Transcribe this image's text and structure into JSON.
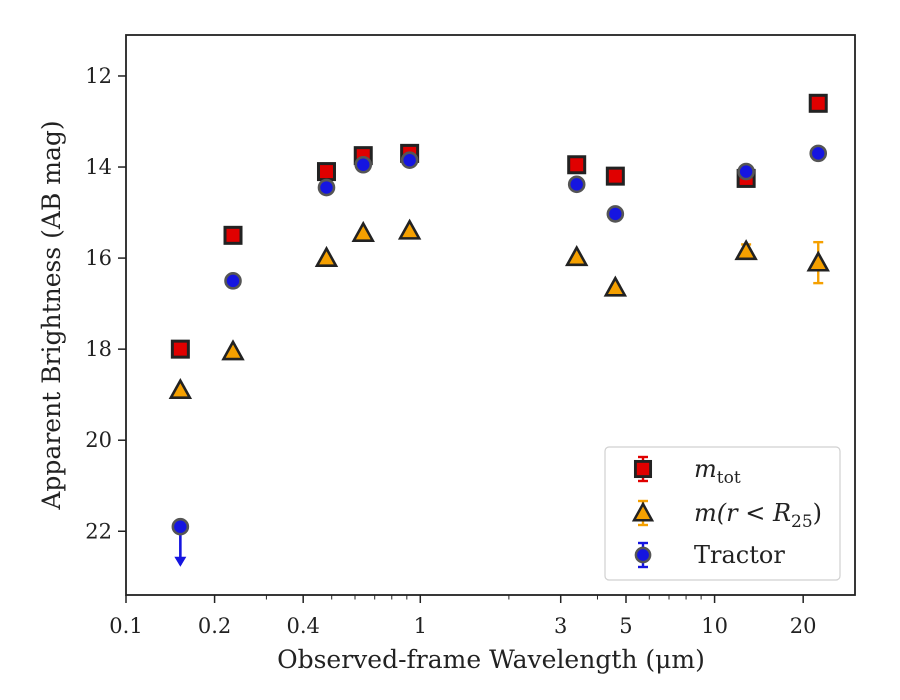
{
  "chart_data": {
    "type": "scatter",
    "xlabel": "Observed-frame Wavelength (μm)",
    "ylabel": "Apparent Brightness (AB mag)",
    "x_scale": "log",
    "xlim": [
      0.1,
      30
    ],
    "ylim": [
      23.4,
      11.1
    ],
    "y_inverted": true,
    "x_ticks": [
      0.1,
      0.2,
      0.4,
      1,
      3,
      5,
      10,
      20
    ],
    "x_tick_labels": [
      "0.1",
      "0.2",
      "0.4",
      "1",
      "3",
      "5",
      "10",
      "20"
    ],
    "y_ticks": [
      12,
      14,
      16,
      18,
      20,
      22
    ],
    "y_tick_labels": [
      "12",
      "14",
      "16",
      "18",
      "20",
      "22"
    ],
    "grid": false,
    "legend_position": "bottom-right",
    "series": [
      {
        "name": "m_tot",
        "label_main": "m",
        "label_sub": "tot",
        "marker": "square",
        "color": "#e00000",
        "x": [
          0.153,
          0.231,
          0.48,
          0.64,
          0.92,
          3.4,
          4.6,
          12.8,
          22.5
        ],
        "y": [
          18.0,
          15.5,
          14.1,
          13.75,
          13.7,
          13.95,
          14.2,
          14.25,
          12.6
        ],
        "yerr": [
          0.03,
          0.03,
          0.03,
          0.03,
          0.03,
          0.03,
          0.03,
          0.03,
          0.03
        ]
      },
      {
        "name": "m(r<R_25)",
        "label_main": "m(r < R",
        "label_sub": "25",
        "label_end": ")",
        "marker": "triangle",
        "color": "#f5a000",
        "x": [
          0.153,
          0.231,
          0.48,
          0.64,
          0.92,
          3.4,
          4.6,
          12.8,
          22.5
        ],
        "y": [
          18.9,
          18.05,
          16.0,
          15.45,
          15.4,
          15.98,
          16.65,
          15.85,
          16.1
        ],
        "yerr": [
          0.05,
          0.05,
          0.03,
          0.03,
          0.03,
          0.04,
          0.05,
          0.15,
          0.45
        ]
      },
      {
        "name": "Tractor",
        "label_main": "Tractor",
        "marker": "circle",
        "color": "#1515e0",
        "x": [
          0.153,
          0.231,
          0.48,
          0.64,
          0.92,
          3.4,
          4.6,
          12.8,
          22.5
        ],
        "y": [
          21.9,
          16.5,
          14.45,
          13.95,
          13.85,
          14.38,
          15.03,
          14.1,
          13.7
        ],
        "yerr": [
          0.03,
          0.03,
          0.03,
          0.03,
          0.03,
          0.03,
          0.03,
          0.03,
          0.03
        ],
        "upper_limit_index": 0
      }
    ]
  }
}
